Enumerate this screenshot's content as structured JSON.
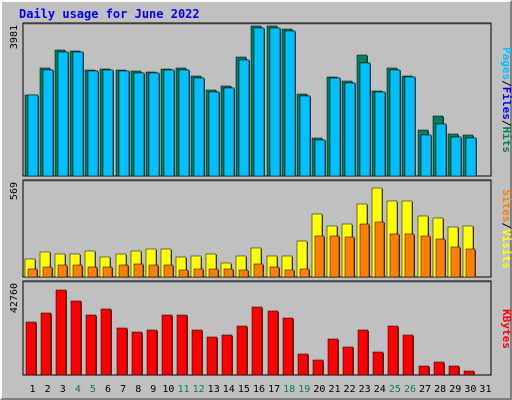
{
  "chart_data": {
    "type": "bar",
    "title": "Daily usage for June 2022",
    "categories": [
      "1",
      "2",
      "3",
      "4",
      "5",
      "6",
      "7",
      "8",
      "9",
      "10",
      "11",
      "12",
      "13",
      "14",
      "15",
      "16",
      "17",
      "18",
      "19",
      "20",
      "21",
      "22",
      "23",
      "24",
      "25",
      "26",
      "27",
      "28",
      "29",
      "30",
      "31"
    ],
    "weekend_days": [
      "4",
      "5",
      "11",
      "12",
      "18",
      "19",
      "25",
      "26"
    ],
    "colors": {
      "hits": "#00805c",
      "files": "#00c0ff",
      "pages": "#00c0ff",
      "visits": "#ffff00",
      "sites": "#ff8000",
      "kbytes": "#ff0000",
      "weekday_label": "#000000",
      "weekend_label": "#00805c",
      "plot_bg": "#c0c0c0",
      "grid": "#808080"
    },
    "legend_right": {
      "panel1": [
        {
          "text": "Pages",
          "color": "#00c0ff"
        },
        {
          "text": "/",
          "color": "#000000"
        },
        {
          "text": "Files",
          "color": "#0000ff"
        },
        {
          "text": "/",
          "color": "#000000"
        },
        {
          "text": "Hits",
          "color": "#00805c"
        }
      ],
      "panel2": [
        {
          "text": "Sites",
          "color": "#ff8000"
        },
        {
          "text": "/",
          "color": "#000000"
        },
        {
          "text": "Visits",
          "color": "#ffff00"
        }
      ],
      "panel3": [
        {
          "text": "KBytes",
          "color": "#ff0000"
        }
      ]
    },
    "panels": [
      {
        "name": "hits-files-pages",
        "ymax": 3981,
        "ymax_label": "3981",
        "series": [
          {
            "name": "Hits",
            "values": [
              2150,
              2860,
              3350,
              3330,
              2820,
              2840,
              2820,
              2790,
              2760,
              2850,
              2860,
              2660,
              2290,
              2380,
              3150,
              3981,
              3981,
              3910,
              2180,
              1000,
              2640,
              2530,
              3220,
              2260,
              2870,
              2660,
              1230,
              1600,
              1120,
              1090,
              0
            ]
          },
          {
            "name": "Files",
            "values": [
              2150,
              2810,
              3300,
              3280,
              2780,
              2800,
              2780,
              2740,
              2730,
              2800,
              2820,
              2610,
              2230,
              2340,
              3090,
              3930,
              3930,
              3860,
              2110,
              950,
              2590,
              2480,
              2990,
              2240,
              2820,
              2620,
              1090,
              1380,
              1040,
              1020,
              0
            ]
          },
          {
            "name": "Pages",
            "values": [
              2150,
              2810,
              3300,
              3280,
              2780,
              2800,
              2780,
              2740,
              2730,
              2800,
              2820,
              2610,
              2230,
              2340,
              3090,
              3930,
              3930,
              3860,
              2110,
              950,
              2590,
              2480,
              2990,
              2240,
              2820,
              2620,
              1090,
              1380,
              1040,
              1020,
              0
            ]
          }
        ]
      },
      {
        "name": "visits-sites",
        "ymax": 569,
        "ymax_label": "569",
        "series": [
          {
            "name": "Visits",
            "values": [
              110,
              150,
              140,
              140,
              160,
              120,
              140,
              160,
              170,
              170,
              120,
              130,
              140,
              85,
              130,
              175,
              125,
              125,
              215,
              380,
              310,
              320,
              440,
              540,
              460,
              460,
              370,
              360,
              300,
              310,
              0
            ]
          },
          {
            "name": "Sites",
            "values": [
              50,
              60,
              70,
              70,
              60,
              60,
              70,
              80,
              70,
              70,
              40,
              50,
              50,
              50,
              40,
              80,
              60,
              40,
              50,
              250,
              250,
              240,
              320,
              330,
              260,
              260,
              250,
              230,
              180,
              170,
              0
            ]
          }
        ]
      },
      {
        "name": "kbytes",
        "ymax": 42760,
        "ymax_label": "42760",
        "series": [
          {
            "name": "KBytes",
            "values": [
              25000,
              29000,
              40000,
              35000,
              28000,
              31000,
              22000,
              20000,
              21000,
              28000,
              28000,
              21000,
              18000,
              19000,
              23000,
              32000,
              30000,
              27000,
              10000,
              7000,
              17000,
              13000,
              21000,
              11000,
              23000,
              19000,
              4000,
              6000,
              4000,
              2000,
              0
            ]
          }
        ]
      }
    ]
  }
}
